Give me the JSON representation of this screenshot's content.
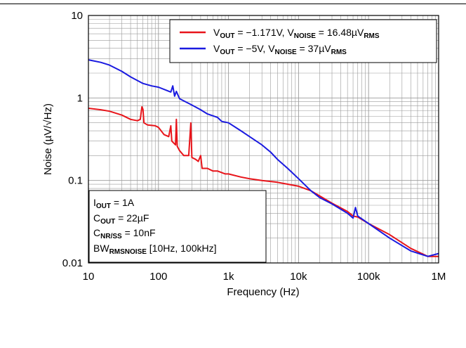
{
  "chart_data": {
    "type": "line",
    "xscale": "log",
    "yscale": "log",
    "xlim": [
      10,
      1000000
    ],
    "ylim": [
      0.01,
      10
    ],
    "xlabel": "Frequency (Hz)",
    "ylabel": "Noise (µV/√Hz)",
    "x_tick_labels": [
      "10",
      "100",
      "1k",
      "10k",
      "100k",
      "1M"
    ],
    "y_tick_labels": [
      "0.01",
      "0.1",
      "1",
      "10"
    ],
    "grid": true,
    "legend_position": "top-right",
    "series": [
      {
        "name": "V_OUT = −1.171V, V_NOISE = 16.48µV_RMS",
        "color": "#e8141a",
        "points": [
          [
            10,
            0.75
          ],
          [
            15,
            0.72
          ],
          [
            20,
            0.69
          ],
          [
            30,
            0.62
          ],
          [
            40,
            0.55
          ],
          [
            50,
            0.53
          ],
          [
            55,
            0.55
          ],
          [
            58,
            0.78
          ],
          [
            60,
            0.73
          ],
          [
            62,
            0.5
          ],
          [
            70,
            0.47
          ],
          [
            90,
            0.46
          ],
          [
            100,
            0.44
          ],
          [
            120,
            0.36
          ],
          [
            140,
            0.34
          ],
          [
            150,
            0.46
          ],
          [
            155,
            0.3
          ],
          [
            175,
            0.27
          ],
          [
            180,
            0.55
          ],
          [
            185,
            0.26
          ],
          [
            200,
            0.23
          ],
          [
            230,
            0.2
          ],
          [
            250,
            0.2
          ],
          [
            270,
            0.2
          ],
          [
            290,
            0.5
          ],
          [
            300,
            0.19
          ],
          [
            340,
            0.18
          ],
          [
            370,
            0.17
          ],
          [
            400,
            0.2
          ],
          [
            420,
            0.14
          ],
          [
            500,
            0.14
          ],
          [
            600,
            0.13
          ],
          [
            700,
            0.13
          ],
          [
            900,
            0.12
          ],
          [
            1000,
            0.12
          ],
          [
            1500,
            0.11
          ],
          [
            2000,
            0.105
          ],
          [
            3000,
            0.1
          ],
          [
            5000,
            0.095
          ],
          [
            7000,
            0.09
          ],
          [
            10000,
            0.085
          ],
          [
            15000,
            0.075
          ],
          [
            20000,
            0.065
          ],
          [
            30000,
            0.053
          ],
          [
            50000,
            0.042
          ],
          [
            60000,
            0.037
          ],
          [
            70000,
            0.036
          ],
          [
            100000,
            0.03
          ],
          [
            200000,
            0.022
          ],
          [
            400000,
            0.015
          ],
          [
            700000,
            0.012
          ],
          [
            1000000,
            0.012
          ]
        ]
      },
      {
        "name": "V_OUT = −5V, V_NOISE = 37µV_RMS",
        "color": "#1a1ae0",
        "points": [
          [
            10,
            2.9
          ],
          [
            15,
            2.7
          ],
          [
            20,
            2.5
          ],
          [
            30,
            2.1
          ],
          [
            40,
            1.8
          ],
          [
            60,
            1.5
          ],
          [
            80,
            1.4
          ],
          [
            100,
            1.35
          ],
          [
            150,
            1.18
          ],
          [
            160,
            1.4
          ],
          [
            170,
            1.05
          ],
          [
            180,
            1.2
          ],
          [
            200,
            0.98
          ],
          [
            300,
            0.82
          ],
          [
            400,
            0.72
          ],
          [
            500,
            0.64
          ],
          [
            700,
            0.58
          ],
          [
            800,
            0.52
          ],
          [
            1000,
            0.5
          ],
          [
            1500,
            0.4
          ],
          [
            2000,
            0.34
          ],
          [
            3000,
            0.27
          ],
          [
            4000,
            0.22
          ],
          [
            5000,
            0.18
          ],
          [
            7000,
            0.14
          ],
          [
            10000,
            0.105
          ],
          [
            15000,
            0.075
          ],
          [
            20000,
            0.062
          ],
          [
            30000,
            0.052
          ],
          [
            50000,
            0.04
          ],
          [
            60000,
            0.035
          ],
          [
            65000,
            0.047
          ],
          [
            70000,
            0.037
          ],
          [
            100000,
            0.03
          ],
          [
            200000,
            0.02
          ],
          [
            400000,
            0.014
          ],
          [
            700000,
            0.012
          ],
          [
            1000000,
            0.013
          ]
        ]
      }
    ],
    "annotations": [
      {
        "main": "I",
        "sub": "OUT",
        "rest": " = 1A"
      },
      {
        "main": "C",
        "sub": "OUT",
        "rest": " = 22µF"
      },
      {
        "main": "C",
        "sub": "NR/SS",
        "rest": " = 10nF"
      },
      {
        "main": "BW",
        "sub": "RMSNOISE",
        "rest": " [10Hz, 100kHz]"
      }
    ]
  },
  "legend": [
    {
      "color": "#e8141a",
      "p1": "V",
      "s1": "OUT",
      "p2": " = −1.171V, V",
      "s2": "NOISE",
      "p3": " = 16.48µV",
      "s3": "RMS"
    },
    {
      "color": "#1a1ae0",
      "p1": "V",
      "s1": "OUT",
      "p2": " = −5V, V",
      "s2": "NOISE",
      "p3": " = 37µV",
      "s3": "RMS"
    }
  ]
}
